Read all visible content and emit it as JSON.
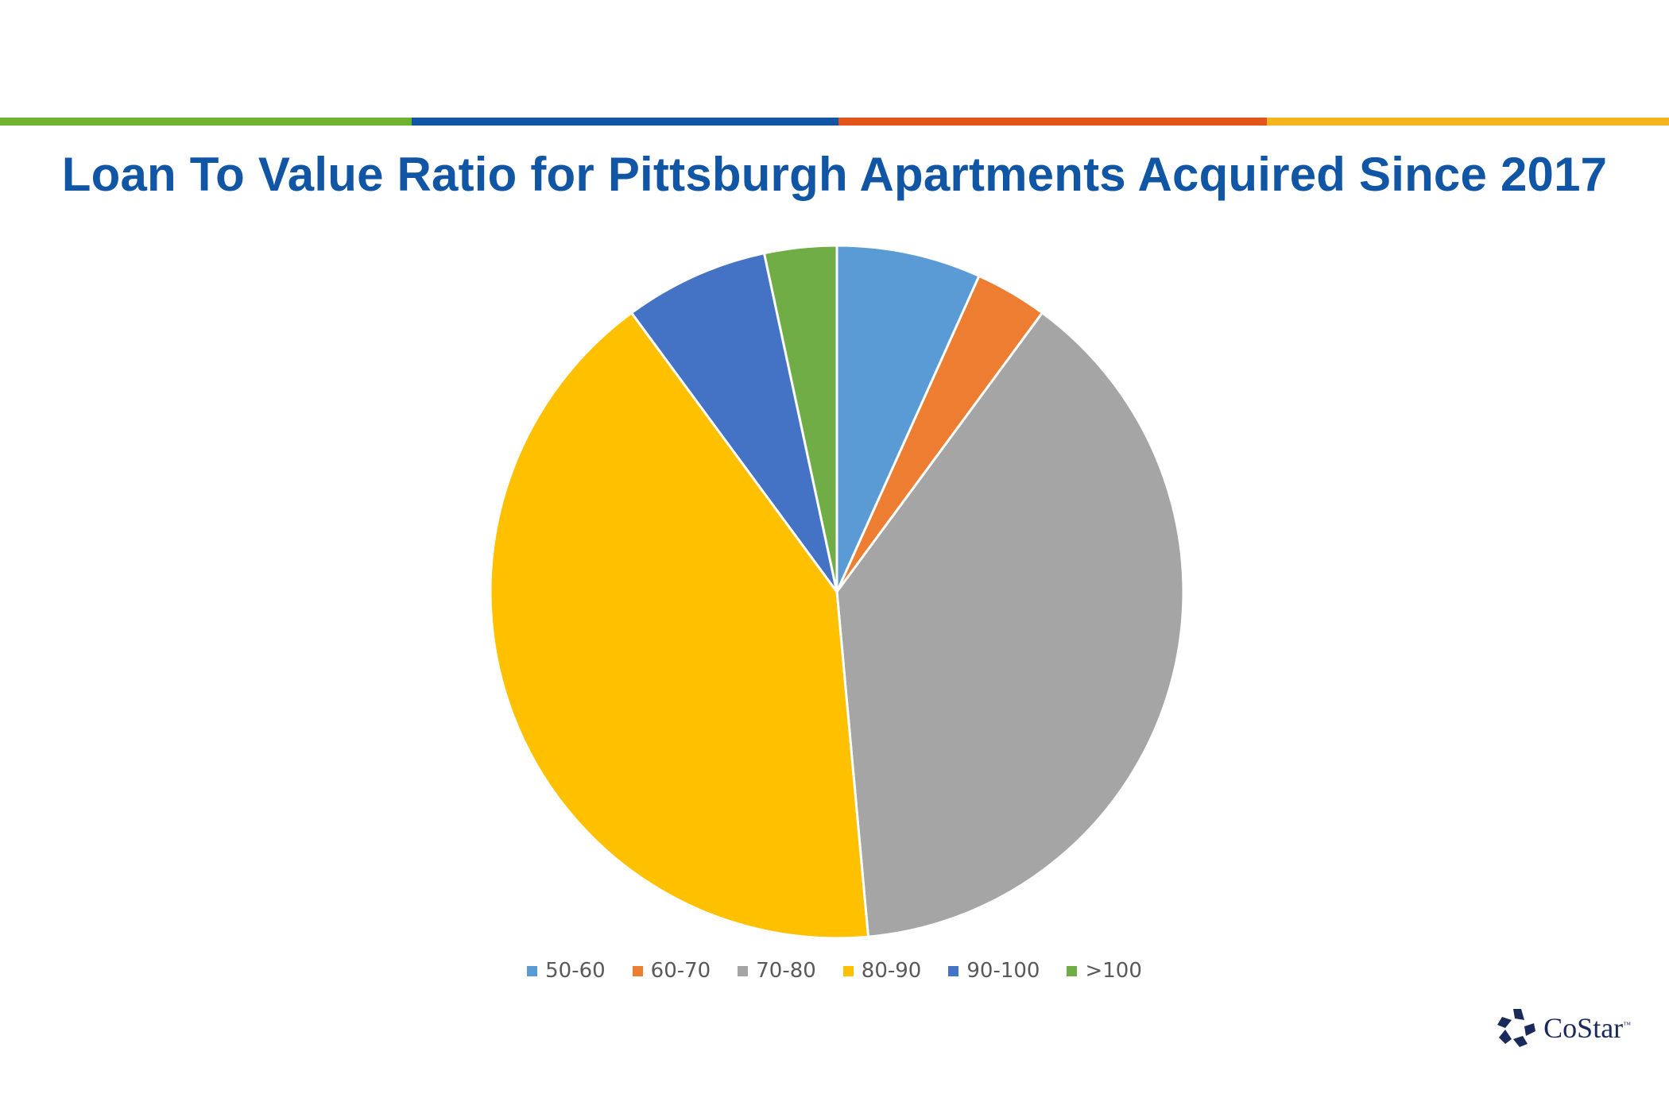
{
  "header": {
    "bar_colors": [
      "#6fb22e",
      "#1155a5",
      "#e3541b",
      "#f2b51d"
    ]
  },
  "chart_data": {
    "type": "pie",
    "title": "Loan To Value Ratio for Pittsburgh Apartments Acquired Since 2017",
    "categories": [
      "50-60",
      "60-70",
      "70-80",
      "80-90",
      "90-100",
      ">100"
    ],
    "values": [
      7,
      3.5,
      40,
      43,
      7,
      3.5
    ],
    "colors": [
      "#5b9bd5",
      "#ed7d31",
      "#a5a5a5",
      "#ffc000",
      "#4472c4",
      "#70ad47"
    ],
    "legend_position": "bottom"
  },
  "brand": {
    "name": "CoStar",
    "trademark": "™",
    "icon": "costar-star-icon",
    "color": "#1a2a5a"
  }
}
